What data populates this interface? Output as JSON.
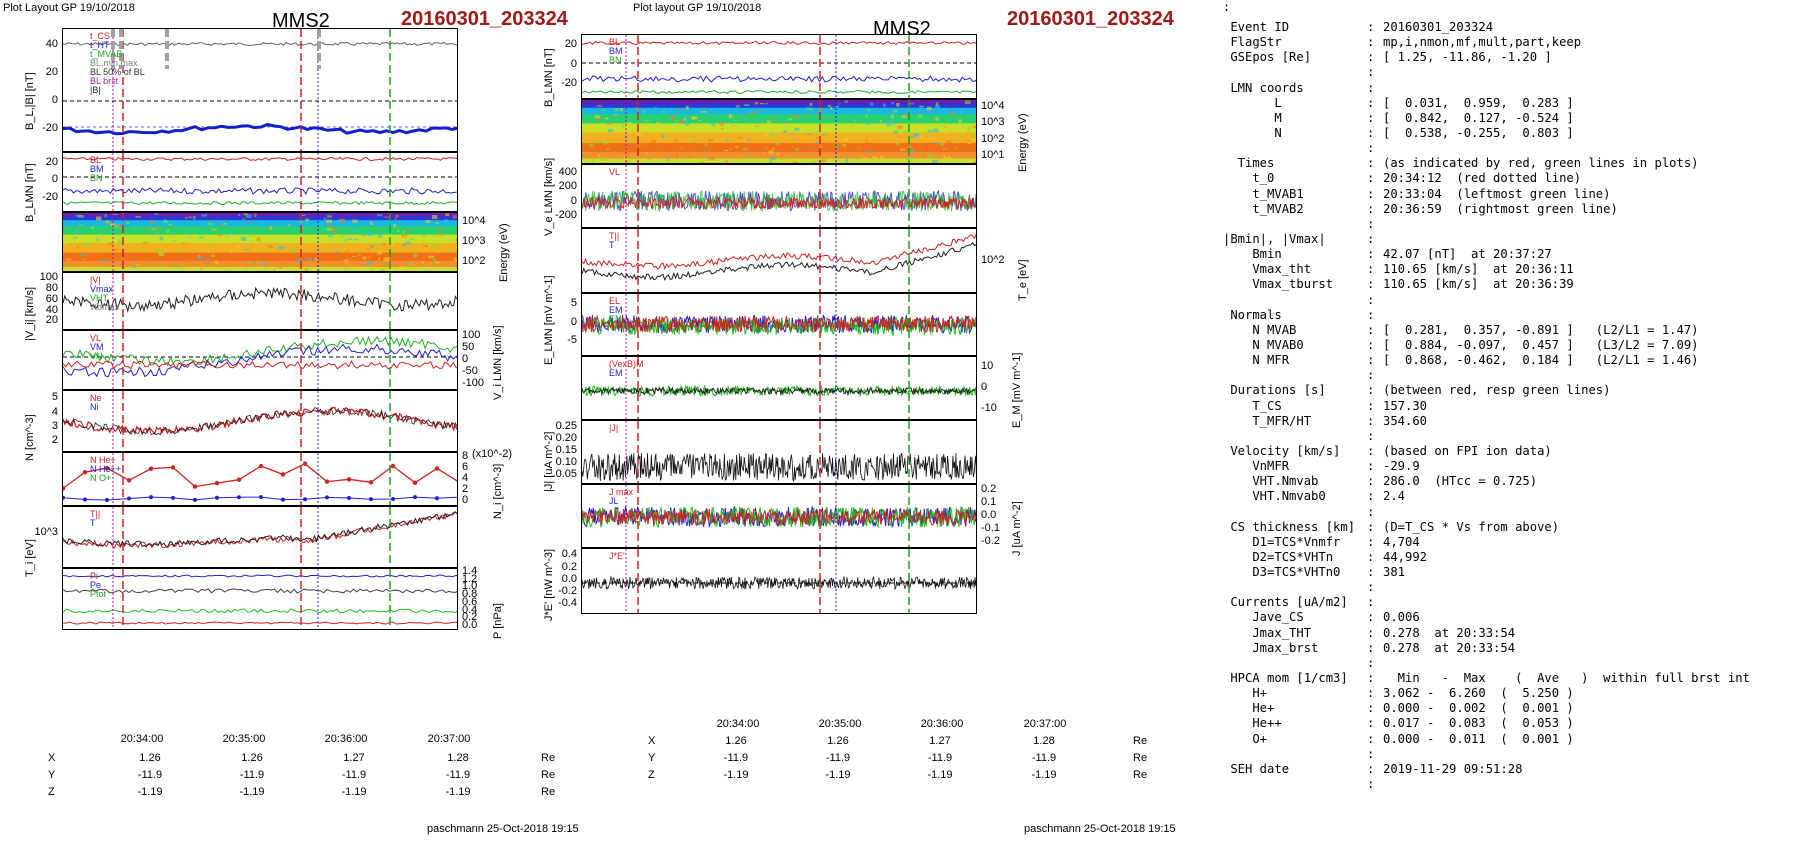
{
  "left_plot": {
    "header": "Plot Layout GP 19/10/2018",
    "spacecraft": "MMS2",
    "event": "20160301_203324",
    "footer": "paschmann 25-Oct-2018 19:15",
    "time_ticks": [
      "20:34:00",
      "20:35:00",
      "20:36:00",
      "20:37:00"
    ],
    "position_table": {
      "rows": [
        {
          "label": "X",
          "values": [
            "1.26",
            "1.26",
            "1.27",
            "1.28"
          ],
          "unit": "Re"
        },
        {
          "label": "Y",
          "values": [
            "-11.9",
            "-11.9",
            "-11.9",
            "-11.9"
          ],
          "unit": "Re"
        },
        {
          "label": "Z",
          "values": [
            "-1.19",
            "-1.19",
            "-1.19",
            "-1.19"
          ],
          "unit": "Re"
        }
      ]
    },
    "panels": [
      {
        "ylabel": "B_L,|B| [nT]",
        "ticks_left": [
          "40",
          "20",
          "0",
          "-20"
        ],
        "legend": [
          "t_CS",
          "t_HT",
          "t_MVAB",
          "BL,min,max",
          "BL 50% of BL",
          "BL brst",
          "|B|"
        ]
      },
      {
        "ylabel": "B_LMN [nT]",
        "ticks_left": [
          "20",
          "0",
          "-20"
        ],
        "legend": [
          "BL",
          "BM",
          "BN"
        ]
      },
      {
        "ylabel": "Energy (eV)",
        "ticks_right": [
          "10^4",
          "10^3",
          "10^2"
        ]
      },
      {
        "ylabel": "|V_i| [km/s]",
        "ticks_left": [
          "100",
          "80",
          "60",
          "40",
          "20"
        ],
        "legend": [
          "|V|",
          "Vmax",
          "VHT",
          "vtbmax"
        ]
      },
      {
        "ylabel": "V_i LMN [km/s]",
        "ticks_right": [
          "100",
          "50",
          "0",
          "-50",
          "-100"
        ],
        "legend": [
          "VL",
          "VM",
          "VN"
        ]
      },
      {
        "ylabel": "N [cm^-3]",
        "ticks_left": [
          "5",
          "4",
          "3",
          "2"
        ],
        "legend": [
          "Ne",
          "Ni"
        ]
      },
      {
        "ylabel": "N_i [cm^-3]",
        "ticks_right": [
          "8",
          "6",
          "4",
          "2",
          "0"
        ],
        "right_exp": "(x10^-2)",
        "legend": [
          "N He+",
          "N He++",
          "N O+"
        ]
      },
      {
        "ylabel": "T_i [eV]",
        "ticks_left": [
          "10^3"
        ],
        "legend": [
          "T||",
          "T"
        ]
      },
      {
        "ylabel": "P [nPa]",
        "ticks_right": [
          "1.4",
          "1.2",
          "1.0",
          "0.8",
          "0.6",
          "0.4",
          "0.2",
          "0.0"
        ],
        "legend": [
          "Pi",
          "Pe",
          "Ptot"
        ]
      }
    ]
  },
  "right_plot": {
    "header": "Plot layout GP 19/10/2018",
    "spacecraft": "MMS2",
    "event": "20160301_203324",
    "footer": "paschmann 25-Oct-2018 19:15",
    "time_ticks": [
      "20:34:00",
      "20:35:00",
      "20:36:00",
      "20:37:00"
    ],
    "position_table": {
      "rows": [
        {
          "label": "X",
          "values": [
            "1.26",
            "1.26",
            "1.27",
            "1.28"
          ],
          "unit": "Re"
        },
        {
          "label": "Y",
          "values": [
            "-11.9",
            "-11.9",
            "-11.9",
            "-11.9"
          ],
          "unit": "Re"
        },
        {
          "label": "Z",
          "values": [
            "-1.19",
            "-1.19",
            "-1.19",
            "-1.19"
          ],
          "unit": "Re"
        }
      ]
    },
    "panels": [
      {
        "ylabel": "B_LMN [nT]",
        "ticks_left": [
          "20",
          "0",
          "-20"
        ],
        "legend": [
          "BL",
          "BM",
          "BN"
        ]
      },
      {
        "ylabel": "Energy (eV)",
        "ticks_right": [
          "10^4",
          "10^3",
          "10^2",
          "10^1"
        ]
      },
      {
        "ylabel": "V_e LMN [km/s]",
        "ticks_left": [
          "400",
          "200",
          "0",
          "-200"
        ],
        "legend": [
          "VL"
        ]
      },
      {
        "ylabel": "T_e [eV]",
        "ticks_right": [
          "10^2"
        ],
        "legend": [
          "T||",
          "T"
        ]
      },
      {
        "ylabel": "E_LMN [mV m^-1]",
        "ticks_left": [
          "5",
          "0",
          "-5"
        ],
        "legend": [
          "EL",
          "EM",
          "EN"
        ]
      },
      {
        "ylabel": "E_M [mV m^-1]",
        "ticks_right": [
          "10",
          "0",
          "-10"
        ],
        "legend": [
          "(VexB)M",
          "EM"
        ]
      },
      {
        "ylabel": "|J| [uA m^-2]",
        "ticks_left": [
          "0.25",
          "0.20",
          "0.15",
          "0.10",
          "0.05"
        ],
        "legend": [
          "|J|"
        ]
      },
      {
        "ylabel": "J [uA m^-2]",
        "ticks_right": [
          "0.2",
          "0.1",
          "0.0",
          "-0.1",
          "-0.2"
        ],
        "legend": [
          "J max",
          "JL"
        ]
      },
      {
        "ylabel": "J*E' [nW m^-3]",
        "ticks_left": [
          "0.4",
          "0.2",
          "0.0",
          "-0.2",
          "-0.4"
        ],
        "legend": [
          "J*E'"
        ]
      }
    ]
  },
  "info_dot": ":",
  "info": [
    {
      "k": " Event ID",
      "v": "20160301_203324"
    },
    {
      "k": " FlagStr",
      "v": "mp,i,nmon,mf,mult,part,keep"
    },
    {
      "k": " GSEpos [Re]",
      "v": "[ 1.25, -11.86, -1.20 ]"
    },
    {
      "k": "",
      "v": ""
    },
    {
      "k": " LMN coords",
      "v": ""
    },
    {
      "k": "       L",
      "v": "[  0.031,  0.959,  0.283 ]"
    },
    {
      "k": "       M",
      "v": "[  0.842,  0.127, -0.524 ]"
    },
    {
      "k": "       N",
      "v": "[  0.538, -0.255,  0.803 ]"
    },
    {
      "k": "",
      "v": ""
    },
    {
      "k": "  Times",
      "v": "(as indicated by red, green lines in plots)"
    },
    {
      "k": "    t_0",
      "v": "20:34:12  (red dotted line)"
    },
    {
      "k": "    t_MVAB1",
      "v": "20:33:04  (leftmost green line)"
    },
    {
      "k": "    t_MVAB2",
      "v": "20:36:59  (rightmost green line)"
    },
    {
      "k": "",
      "v": ""
    },
    {
      "k": "|Bmin|, |Vmax|",
      "v": ""
    },
    {
      "k": "    Bmin",
      "v": "42.07 [nT]  at 20:37:27"
    },
    {
      "k": "    Vmax_tht",
      "v": "110.65 [km/s]  at 20:36:11"
    },
    {
      "k": "    Vmax_tburst",
      "v": "110.65 [km/s]  at 20:36:39"
    },
    {
      "k": "",
      "v": ""
    },
    {
      "k": " Normals",
      "v": ""
    },
    {
      "k": "    N MVAB",
      "v": "[  0.281,  0.357, -0.891 ]   (L2/L1 = 1.47)"
    },
    {
      "k": "    N MVAB0",
      "v": "[  0.884, -0.097,  0.457 ]   (L3/L2 = 7.09)"
    },
    {
      "k": "    N MFR",
      "v": "[  0.868, -0.462,  0.184 ]   (L2/L1 = 1.46)"
    },
    {
      "k": "",
      "v": ""
    },
    {
      "k": " Durations [s]",
      "v": "(between red, resp green lines)"
    },
    {
      "k": "    T_CS",
      "v": "157.30"
    },
    {
      "k": "    T_MFR/HT",
      "v": "354.60"
    },
    {
      "k": "",
      "v": ""
    },
    {
      "k": " Velocity [km/s]",
      "v": "(based on FPI ion data)"
    },
    {
      "k": "    VnMFR",
      "v": "-29.9"
    },
    {
      "k": "    VHT.Nmvab",
      "v": "286.0  (HTcc = 0.725)"
    },
    {
      "k": "    VHT.Nmvab0",
      "v": "2.4"
    },
    {
      "k": "",
      "v": ""
    },
    {
      "k": " CS thickness [km]",
      "v": "(D=T_CS * Vs from above)"
    },
    {
      "k": "    D1=TCS*Vnmfr",
      "v": "4,704"
    },
    {
      "k": "    D2=TCS*VHTn",
      "v": "44,992"
    },
    {
      "k": "    D3=TCS*VHTn0",
      "v": "381"
    },
    {
      "k": "",
      "v": ""
    },
    {
      "k": " Currents [uA/m2]",
      "v": ""
    },
    {
      "k": "    Jave_CS",
      "v": "0.006"
    },
    {
      "k": "    Jmax_THT",
      "v": "0.278  at 20:33:54"
    },
    {
      "k": "    Jmax_brst",
      "v": "0.278  at 20:33:54"
    },
    {
      "k": "",
      "v": ""
    },
    {
      "k": " HPCA mom [1/cm3]",
      "v": "  Min   -  Max    (  Ave   )  within full brst int"
    },
    {
      "k": "    H+",
      "v": "3.062 -  6.260  (  5.250 )"
    },
    {
      "k": "    He+",
      "v": "0.000 -  0.002  (  0.001 )"
    },
    {
      "k": "    He++",
      "v": "0.017 -  0.083  (  0.053 )"
    },
    {
      "k": "    O+",
      "v": "0.000 -  0.011  (  0.001 )"
    },
    {
      "k": "",
      "v": ""
    },
    {
      "k": " SEH date",
      "v": "2019-11-29 09:51:28"
    },
    {
      "k": "",
      "v": ""
    }
  ],
  "chart_data": [
    {
      "type": "line",
      "title": "MMS2 20160301_203324",
      "x_ticks": [
        "20:34:00",
        "20:35:00",
        "20:36:00",
        "20:37:00"
      ],
      "series": [
        {
          "name": "|B|",
          "approx": "≈44 nT throughout"
        },
        {
          "name": "BL brst",
          "approx": "≈ -18 to -27 nT"
        },
        {
          "name": "|Vi|",
          "approx": "20–100 km/s"
        },
        {
          "name": "Ne",
          "approx": "2–5.5 cm^-3"
        },
        {
          "name": "N He++",
          "approx": "2–7 x10^-2 cm^-3"
        }
      ]
    },
    {
      "type": "line",
      "title": "MMS2 20160301_203324",
      "x_ticks": [
        "20:34:00",
        "20:35:00",
        "20:36:00",
        "20:37:00"
      ],
      "series": [
        {
          "name": "Ve L",
          "approx": "-200 to 400 km/s"
        },
        {
          "name": "|J|",
          "approx": "0.05–0.28 uA m^-2"
        },
        {
          "name": "J*E'",
          "approx": "-0.4 to 0.4 nW m^-3"
        }
      ]
    }
  ]
}
